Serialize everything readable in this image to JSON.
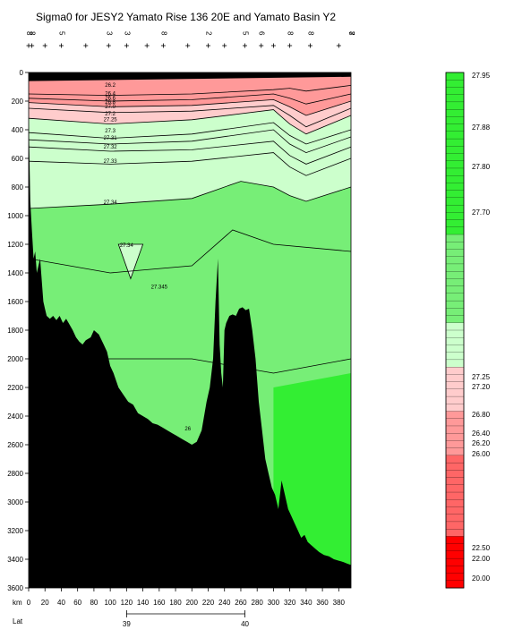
{
  "chart_data": {
    "type": "heatmap",
    "title": "Sigma0 for JESY2 Yamato Rise 136 20E and Yamato Basin Y2",
    "xlabel": "km",
    "lat_label": "Lat",
    "xlim": [
      0,
      395
    ],
    "ylim": [
      0,
      3600
    ],
    "x_ticks": [
      0,
      20,
      40,
      60,
      80,
      100,
      120,
      140,
      160,
      180,
      200,
      220,
      240,
      260,
      280,
      300,
      320,
      340,
      360,
      380
    ],
    "y_ticks": [
      0,
      200,
      400,
      600,
      800,
      1000,
      1200,
      1400,
      1600,
      1800,
      2000,
      2200,
      2400,
      2600,
      2800,
      3000,
      3200,
      3400,
      3600
    ],
    "lat_ticks": [
      {
        "value": "39",
        "km": 120
      },
      {
        "value": "40",
        "km": 265
      }
    ],
    "station_km": [
      0,
      4,
      20,
      40,
      70,
      98,
      120,
      145,
      165,
      195,
      220,
      240,
      265,
      285,
      300,
      320,
      345,
      380
    ],
    "station_labels": [
      "8",
      "8",
      "5",
      "3",
      "3",
      "8",
      "2",
      "5",
      "6",
      "8",
      "8",
      "7",
      "8"
    ],
    "bathymetry": {
      "km": [
        0,
        2,
        4,
        6,
        8,
        10,
        14,
        18,
        20,
        22,
        26,
        30,
        34,
        38,
        42,
        46,
        50,
        54,
        58,
        62,
        66,
        70,
        76,
        80,
        86,
        92,
        96,
        100,
        104,
        110,
        116,
        122,
        128,
        134,
        140,
        146,
        152,
        158,
        164,
        170,
        176,
        182,
        188,
        194,
        200,
        206,
        212,
        218,
        222,
        226,
        229,
        232,
        234,
        236,
        238,
        240,
        242,
        246,
        250,
        254,
        258,
        262,
        266,
        270,
        274,
        278,
        282,
        286,
        290,
        294,
        298,
        302,
        306,
        310,
        314,
        318,
        322,
        326,
        330,
        334,
        338,
        342,
        346,
        350,
        356,
        362,
        368,
        374,
        380,
        386,
        390,
        395
      ],
      "depth": [
        300,
        900,
        1100,
        1300,
        1250,
        1400,
        1300,
        1600,
        1650,
        1700,
        1720,
        1700,
        1730,
        1700,
        1750,
        1720,
        1760,
        1800,
        1850,
        1880,
        1900,
        1870,
        1850,
        1800,
        1830,
        1900,
        1950,
        2050,
        2100,
        2200,
        2250,
        2300,
        2320,
        2380,
        2400,
        2420,
        2450,
        2460,
        2480,
        2500,
        2520,
        2540,
        2560,
        2580,
        2600,
        2580,
        2500,
        2300,
        2200,
        2000,
        1600,
        1300,
        1900,
        2100,
        2200,
        1800,
        1750,
        1700,
        1690,
        1700,
        1650,
        1640,
        1660,
        1650,
        1800,
        2000,
        2300,
        2500,
        2700,
        2800,
        2900,
        2950,
        3050,
        2850,
        2950,
        3050,
        3100,
        3150,
        3200,
        3250,
        3230,
        3280,
        3300,
        3320,
        3350,
        3370,
        3380,
        3400,
        3410,
        3420,
        3430,
        3440
      ]
    },
    "contours": [
      {
        "level": "26.4",
        "km": [
          0,
          100,
          200,
          300,
          320,
          340,
          395
        ],
        "depth": [
          150,
          160,
          150,
          120,
          110,
          130,
          90
        ]
      },
      {
        "level": "26.8",
        "km": [
          0,
          100,
          200,
          300,
          320,
          340,
          395
        ],
        "depth": [
          180,
          200,
          190,
          150,
          180,
          220,
          150
        ]
      },
      {
        "level": "27.0",
        "km": [
          0,
          100,
          200,
          300,
          320,
          340,
          395
        ],
        "depth": [
          210,
          240,
          230,
          190,
          240,
          300,
          200
        ]
      },
      {
        "level": "27.2",
        "km": [
          0,
          100,
          200,
          300,
          320,
          340,
          395
        ],
        "depth": [
          250,
          280,
          270,
          230,
          300,
          380,
          250
        ]
      },
      {
        "level": "27.25",
        "km": [
          0,
          100,
          200,
          300,
          320,
          340,
          395
        ],
        "depth": [
          320,
          360,
          330,
          260,
          360,
          430,
          300
        ]
      },
      {
        "level": "27.3",
        "km": [
          0,
          100,
          200,
          300,
          320,
          340,
          395
        ],
        "depth": [
          420,
          460,
          430,
          350,
          440,
          500,
          400
        ]
      },
      {
        "level": "27.31",
        "km": [
          0,
          100,
          200,
          300,
          320,
          340,
          395
        ],
        "depth": [
          470,
          500,
          480,
          400,
          500,
          560,
          450
        ]
      },
      {
        "level": "27.32",
        "km": [
          0,
          100,
          200,
          300,
          320,
          340,
          395
        ],
        "depth": [
          520,
          550,
          540,
          480,
          580,
          640,
          520
        ]
      },
      {
        "level": "27.33",
        "km": [
          0,
          100,
          200,
          300,
          320,
          340,
          395
        ],
        "depth": [
          620,
          640,
          620,
          560,
          660,
          720,
          600
        ]
      },
      {
        "level": "27.34",
        "km": [
          0,
          100,
          200,
          230,
          260,
          300,
          320,
          340,
          395
        ],
        "depth": [
          950,
          920,
          880,
          820,
          760,
          800,
          860,
          900,
          800
        ]
      },
      {
        "level": "27.345",
        "km": [
          0,
          100,
          200,
          250,
          300,
          395
        ],
        "depth": [
          1300,
          1400,
          1350,
          1100,
          1200,
          1250
        ]
      },
      {
        "level": "27.35",
        "km": [
          0,
          200,
          300,
          395
        ],
        "depth": [
          2000,
          2000,
          2100,
          2000
        ]
      }
    ],
    "contour_labels": [
      {
        "text": "26.2",
        "km": 100,
        "depth": 100
      },
      {
        "text": "26.4",
        "km": 100,
        "depth": 160
      },
      {
        "text": "26.6",
        "km": 100,
        "depth": 190
      },
      {
        "text": "26.8",
        "km": 100,
        "depth": 220
      },
      {
        "text": "27.0",
        "km": 100,
        "depth": 250
      },
      {
        "text": "27.2",
        "km": 100,
        "depth": 300
      },
      {
        "text": "27.25",
        "km": 100,
        "depth": 340
      },
      {
        "text": "27.3",
        "km": 100,
        "depth": 420
      },
      {
        "text": "27.31",
        "km": 100,
        "depth": 470
      },
      {
        "text": "27.32",
        "km": 100,
        "depth": 530
      },
      {
        "text": "27.33",
        "km": 100,
        "depth": 630
      },
      {
        "text": "27.34",
        "km": 100,
        "depth": 920
      },
      {
        "text": "27.34",
        "km": 120,
        "depth": 1220
      },
      {
        "text": "27.345",
        "km": 160,
        "depth": 1510
      },
      {
        "text": "26",
        "km": 195,
        "depth": 2500
      },
      {
        "text": "24",
        "km": 25,
        "depth": 40
      }
    ],
    "colorbar": {
      "labels": [
        {
          "text": "27.95",
          "value": 27.95
        },
        {
          "text": "27.88",
          "value": 27.88
        },
        {
          "text": "27.80",
          "value": 27.8
        },
        {
          "text": "27.70",
          "value": 27.7
        },
        {
          "text": "27.25",
          "value": 27.25
        },
        {
          "text": "27.20",
          "value": 27.2
        },
        {
          "text": "26.80",
          "value": 26.8
        },
        {
          "text": "26.40",
          "value": 26.4
        },
        {
          "text": "26.20",
          "value": 26.2
        },
        {
          "text": "26.00",
          "value": 26.0
        },
        {
          "text": "22.50",
          "value": 22.5
        },
        {
          "text": "22.00",
          "value": 22.0
        },
        {
          "text": "20.00",
          "value": 20.0
        }
      ],
      "colors": {
        "green_dark": "#33ee33",
        "green_mid": "#77ee77",
        "green_light": "#ccffcc",
        "pink_light": "#ffcccc",
        "pink_mid": "#ff9999",
        "red_mid": "#ff6666",
        "red_dark": "#ff0000"
      }
    }
  }
}
